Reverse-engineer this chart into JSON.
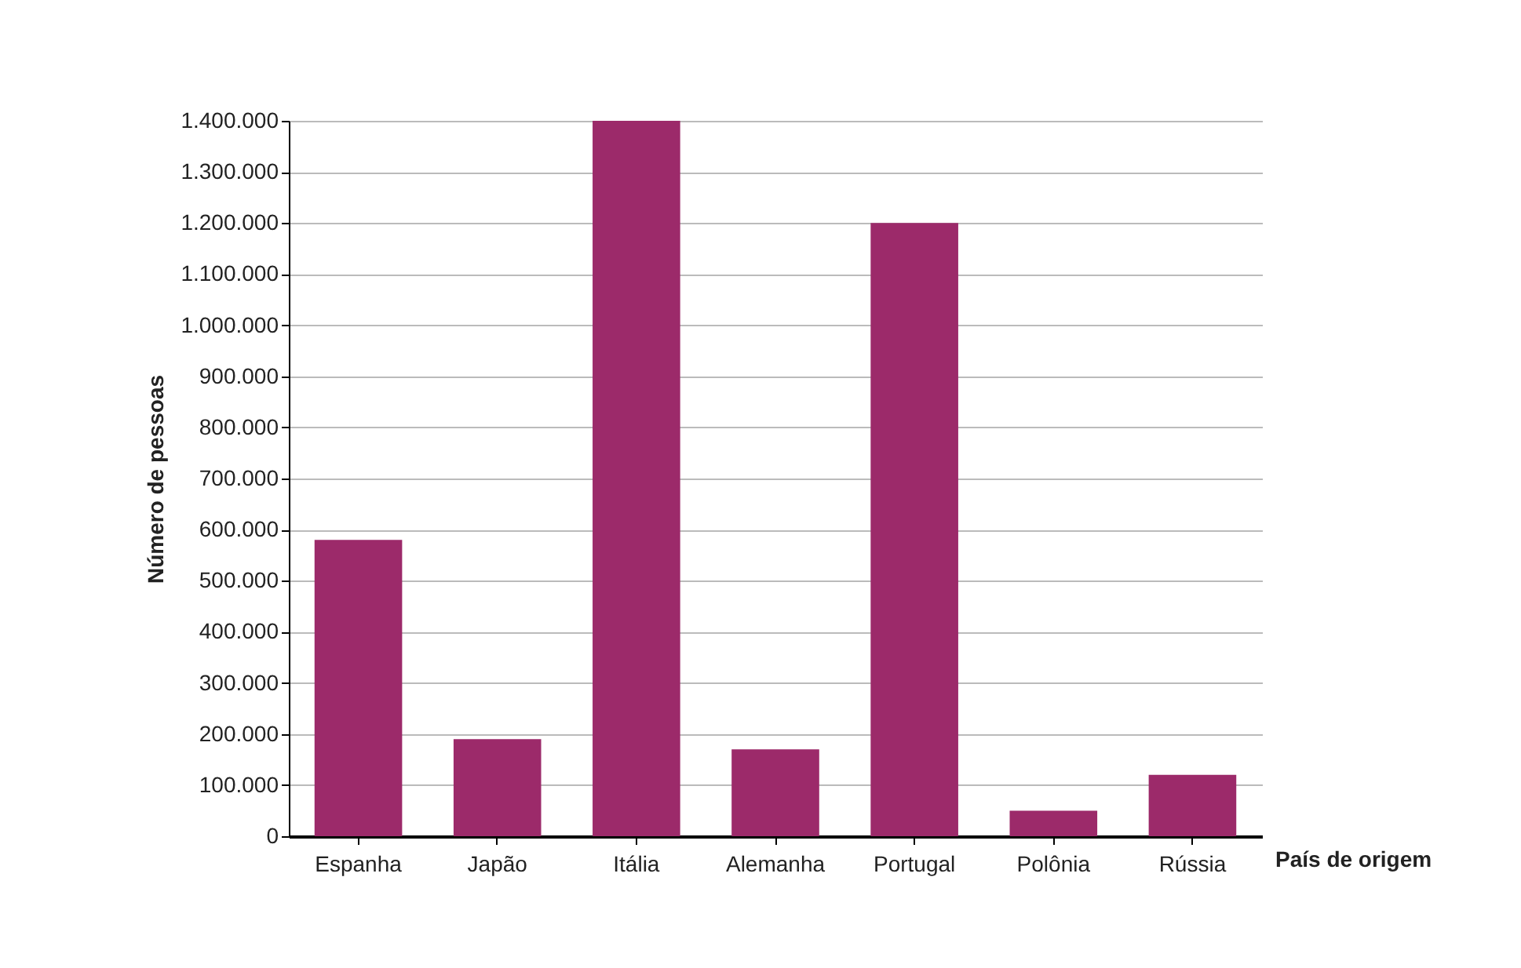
{
  "chart_data": {
    "type": "bar",
    "xlabel": "País de origem",
    "ylabel": "Número de pessoas",
    "categories": [
      "Espanha",
      "Japão",
      "Itália",
      "Alemanha",
      "Portugal",
      "Polônia",
      "Rússia"
    ],
    "values": [
      580000,
      190000,
      1400000,
      170000,
      1200000,
      50000,
      120000
    ],
    "color": "#9c2a6a",
    "ylim": [
      0,
      1400000
    ],
    "yticks": [
      {
        "value": 0,
        "label": "0"
      },
      {
        "value": 100000,
        "label": "100.000"
      },
      {
        "value": 200000,
        "label": "200.000"
      },
      {
        "value": 300000,
        "label": "300.000"
      },
      {
        "value": 400000,
        "label": "400.000"
      },
      {
        "value": 500000,
        "label": "500.000"
      },
      {
        "value": 600000,
        "label": "600.000"
      },
      {
        "value": 700000,
        "label": "700.000"
      },
      {
        "value": 800000,
        "label": "800.000"
      },
      {
        "value": 900000,
        "label": "900.000"
      },
      {
        "value": 1000000,
        "label": "1.000.000"
      },
      {
        "value": 1100000,
        "label": "1.100.000"
      },
      {
        "value": 1200000,
        "label": "1.200.000"
      },
      {
        "value": 1300000,
        "label": "1.300.000"
      },
      {
        "value": 1400000,
        "label": "1.400.000"
      }
    ],
    "grid": "y"
  }
}
